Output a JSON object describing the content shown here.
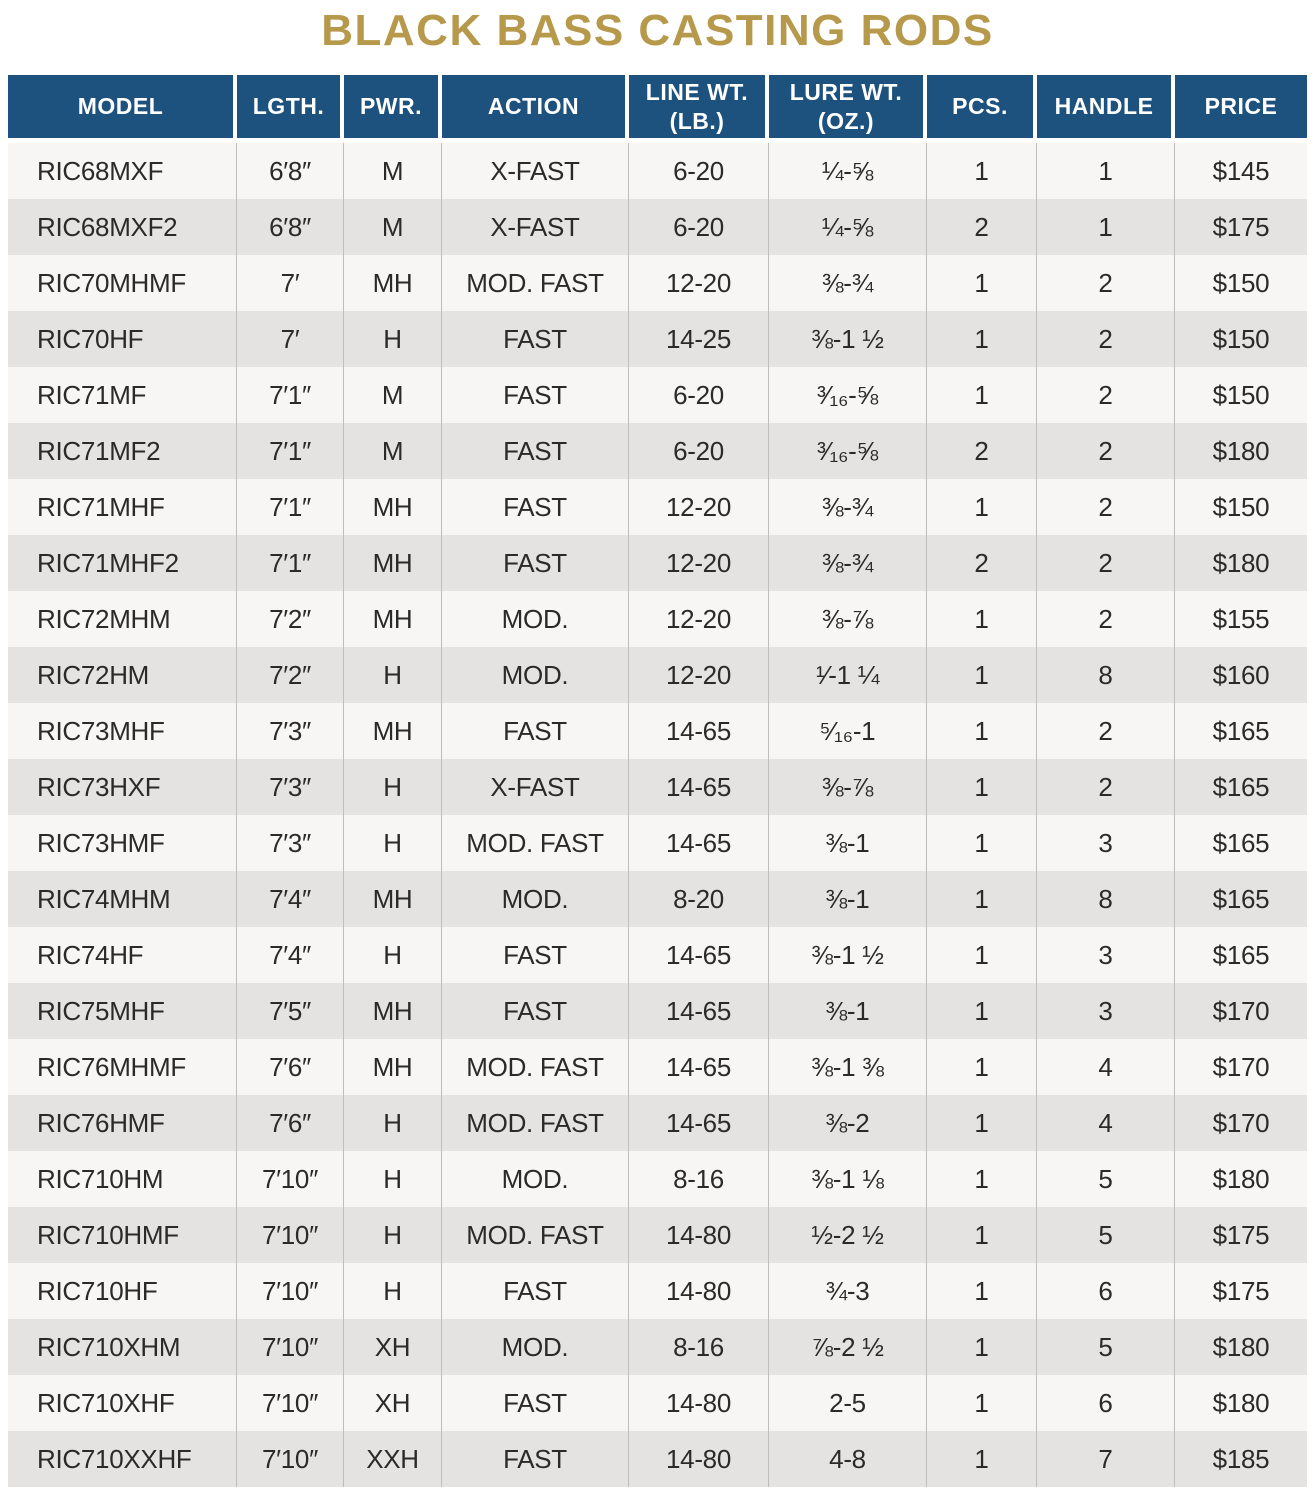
{
  "title": "BLACK BASS CASTING RODS",
  "theme": {
    "title_color": "#b6994a",
    "header_bg": "#1d517e",
    "header_text": "#ffffff",
    "row_light": "#f7f6f5",
    "row_dark": "#e4e3e2",
    "body_text": "#2a2a2a",
    "divider": "#bdbdbd"
  },
  "table": {
    "columns": [
      {
        "key": "model",
        "label": "MODEL",
        "align": "left"
      },
      {
        "key": "length",
        "label": "LGTH."
      },
      {
        "key": "power",
        "label": "PWR."
      },
      {
        "key": "action",
        "label": "ACTION"
      },
      {
        "key": "line_wt",
        "label": "LINE WT. (LB.)"
      },
      {
        "key": "lure_wt",
        "label": "LURE WT. (OZ.)"
      },
      {
        "key": "pcs",
        "label": "PCS."
      },
      {
        "key": "handle",
        "label": "HANDLE"
      },
      {
        "key": "price",
        "label": "PRICE"
      }
    ],
    "rows": [
      [
        "RIC68MXF",
        "6′8″",
        "M",
        "X-FAST",
        "6-20",
        "¼-⅝",
        "1",
        "1",
        "$145"
      ],
      [
        "RIC68MXF2",
        "6′8″",
        "M",
        "X-FAST",
        "6-20",
        "¼-⅝",
        "2",
        "1",
        "$175"
      ],
      [
        "RIC70MHMF",
        "7′",
        "MH",
        "MOD. FAST",
        "12-20",
        "⅜-¾",
        "1",
        "2",
        "$150"
      ],
      [
        "RIC70HF",
        "7′",
        "H",
        "FAST",
        "14-25",
        "⅜-1 ½",
        "1",
        "2",
        "$150"
      ],
      [
        "RIC71MF",
        "7′1″",
        "M",
        "FAST",
        "6-20",
        "³⁄₁₆-⅝",
        "1",
        "2",
        "$150"
      ],
      [
        "RIC71MF2",
        "7′1″",
        "M",
        "FAST",
        "6-20",
        "³⁄₁₆-⅝",
        "2",
        "2",
        "$180"
      ],
      [
        "RIC71MHF",
        "7′1″",
        "MH",
        "FAST",
        "12-20",
        "⅜-¾",
        "1",
        "2",
        "$150"
      ],
      [
        "RIC71MHF2",
        "7′1″",
        "MH",
        "FAST",
        "12-20",
        "⅜-¾",
        "2",
        "2",
        "$180"
      ],
      [
        "RIC72MHM",
        "7′2″",
        "MH",
        "MOD.",
        "12-20",
        "⅜-⅞",
        "1",
        "2",
        "$155"
      ],
      [
        "RIC72HM",
        "7′2″",
        "H",
        "MOD.",
        "12-20",
        "¹⁄-1 ¼",
        "1",
        "8",
        "$160"
      ],
      [
        "RIC73MHF",
        "7′3″",
        "MH",
        "FAST",
        "14-65",
        "⁵⁄₁₆-1",
        "1",
        "2",
        "$165"
      ],
      [
        "RIC73HXF",
        "7′3″",
        "H",
        "X-FAST",
        "14-65",
        "⅜-⅞",
        "1",
        "2",
        "$165"
      ],
      [
        "RIC73HMF",
        "7′3″",
        "H",
        "MOD. FAST",
        "14-65",
        "⅜-1",
        "1",
        "3",
        "$165"
      ],
      [
        "RIC74MHM",
        "7′4″",
        "MH",
        "MOD.",
        "8-20",
        "⅜-1",
        "1",
        "8",
        "$165"
      ],
      [
        "RIC74HF",
        "7′4″",
        "H",
        "FAST",
        "14-65",
        "⅜-1 ½",
        "1",
        "3",
        "$165"
      ],
      [
        "RIC75MHF",
        "7′5″",
        "MH",
        "FAST",
        "14-65",
        "⅜-1",
        "1",
        "3",
        "$170"
      ],
      [
        "RIC76MHMF",
        "7′6″",
        "MH",
        "MOD. FAST",
        "14-65",
        "⅜-1 ⅜",
        "1",
        "4",
        "$170"
      ],
      [
        "RIC76HMF",
        "7′6″",
        "H",
        "MOD. FAST",
        "14-65",
        "⅜-2",
        "1",
        "4",
        "$170"
      ],
      [
        "RIC710HM",
        "7′10″",
        "H",
        "MOD.",
        "8-16",
        "⅜-1 ⅛",
        "1",
        "5",
        "$180"
      ],
      [
        "RIC710HMF",
        "7′10″",
        "H",
        "MOD. FAST",
        "14-80",
        "½-2 ½",
        "1",
        "5",
        "$175"
      ],
      [
        "RIC710HF",
        "7′10″",
        "H",
        "FAST",
        "14-80",
        "¾-3",
        "1",
        "6",
        "$175"
      ],
      [
        "RIC710XHM",
        "7′10″",
        "XH",
        "MOD.",
        "8-16",
        "⅞-2 ½",
        "1",
        "5",
        "$180"
      ],
      [
        "RIC710XHF",
        "7′10″",
        "XH",
        "FAST",
        "14-80",
        "2-5",
        "1",
        "6",
        "$180"
      ],
      [
        "RIC710XXHF",
        "7′10″",
        "XXH",
        "FAST",
        "14-80",
        "4-8",
        "1",
        "7",
        "$185"
      ]
    ]
  }
}
